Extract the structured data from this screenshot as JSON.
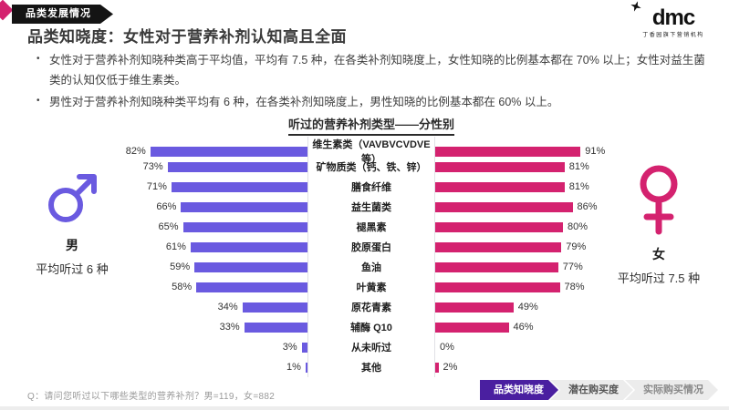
{
  "page": {
    "badge": "品类发展情况",
    "title": "品类知晓度：女性对于营养补剂认知高且全面",
    "bullets": [
      "女性对于营养补剂知晓种类高于平均值，平均有 7.5 种，在各类补剂知晓度上，女性知晓的比例基本都在 70% 以上；女性对益生菌类的认知仅低于维生素类。",
      "男性对于营养补剂知晓种类平均有 6 种，在各类补剂知晓度上，男性知晓的比例基本都在 60% 以上。"
    ],
    "footnote": "Q：请问您听过以下哪些类型的营养补剂？男=119，女=882"
  },
  "logo": {
    "text": "dmc",
    "tagline": "丁香园旗下营销机构"
  },
  "chart_data": {
    "type": "bar",
    "variant": "diverging-horizontal",
    "title": "听过的营养补剂类型——分性别",
    "categories": [
      "维生素类（VAVBVCVDVE等）",
      "矿物质类（钙、铁、锌）",
      "膳食纤维",
      "益生菌类",
      "褪黑素",
      "胶原蛋白",
      "鱼油",
      "叶黄素",
      "原花青素",
      "辅酶 Q10",
      "从未听过",
      "其他"
    ],
    "series": [
      {
        "name": "男",
        "color": "#6a5ae0",
        "values": [
          82,
          73,
          71,
          66,
          65,
          61,
          59,
          58,
          34,
          33,
          3,
          1
        ]
      },
      {
        "name": "女",
        "color": "#d4226f",
        "values": [
          91,
          81,
          81,
          86,
          80,
          79,
          77,
          78,
          49,
          46,
          0,
          2
        ]
      }
    ],
    "value_suffix": "%",
    "xlim": [
      0,
      100
    ],
    "grid": false,
    "legend_position": "none"
  },
  "male": {
    "label": "男",
    "avg": "平均听过 6 种"
  },
  "female": {
    "label": "女",
    "avg": "平均听过 7.5 种"
  },
  "breadcrumbs": [
    {
      "label": "品类知晓度"
    },
    {
      "label": "潜在购买度"
    },
    {
      "label": "实际购买情况"
    }
  ],
  "colors": {
    "male_accent": "#6a5ae0",
    "female_accent": "#d4226f",
    "crumb_active": "#4a1fa0",
    "badge_bg": "#141414"
  }
}
